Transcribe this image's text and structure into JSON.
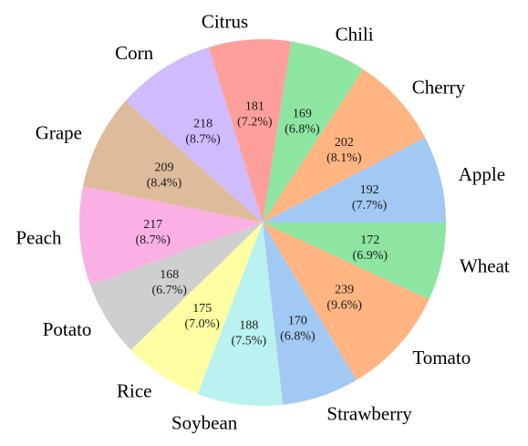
{
  "chart_data": {
    "type": "pie",
    "title": "",
    "start_angle_deg": 0,
    "direction": "counterclockwise",
    "slices": [
      {
        "label": "Apple",
        "value": 192,
        "percent": "7.7%",
        "color": "#a1c9f4"
      },
      {
        "label": "Cherry",
        "value": 202,
        "percent": "8.1%",
        "color": "#ffb482"
      },
      {
        "label": "Chili",
        "value": 169,
        "percent": "6.8%",
        "color": "#8de5a1"
      },
      {
        "label": "Citrus",
        "value": 181,
        "percent": "7.2%",
        "color": "#ff9f9b"
      },
      {
        "label": "Corn",
        "value": 218,
        "percent": "8.7%",
        "color": "#d0bbff"
      },
      {
        "label": "Grape",
        "value": 209,
        "percent": "8.4%",
        "color": "#debb9b"
      },
      {
        "label": "Peach",
        "value": 217,
        "percent": "8.7%",
        "color": "#fab0e4"
      },
      {
        "label": "Potato",
        "value": 168,
        "percent": "6.7%",
        "color": "#cfcfcf"
      },
      {
        "label": "Rice",
        "value": 175,
        "percent": "7.0%",
        "color": "#fffea3"
      },
      {
        "label": "Soybean",
        "value": 188,
        "percent": "7.5%",
        "color": "#b9f2f0"
      },
      {
        "label": "Strawberry",
        "value": 170,
        "percent": "6.8%",
        "color": "#a1c9f4"
      },
      {
        "label": "Tomato",
        "value": 239,
        "percent": "9.6%",
        "color": "#ffb482"
      },
      {
        "label": "Wheat",
        "value": 172,
        "percent": "6.9%",
        "color": "#8de5a1"
      }
    ]
  }
}
